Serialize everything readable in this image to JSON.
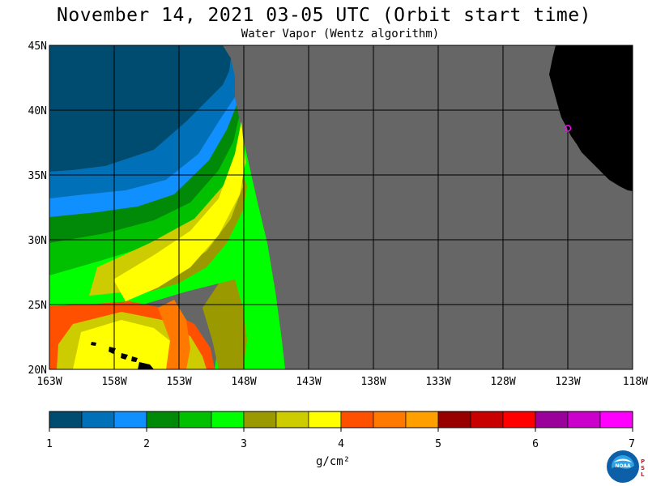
{
  "title": "November 14, 2021  03-05 UTC  (Orbit start time)",
  "subtitle": "Water Vapor (Wentz algorithm)",
  "map": {
    "lon_range": [
      -163,
      -118
    ],
    "lat_range": [
      20,
      45
    ],
    "lon_ticks": [
      "163W",
      "158W",
      "153W",
      "148W",
      "143W",
      "138W",
      "133W",
      "128W",
      "123W",
      "118W"
    ],
    "lat_ticks": [
      "45N",
      "40N",
      "35N",
      "30N",
      "25N",
      "20N"
    ],
    "land_color": "#000000",
    "no_data_color": "#666666",
    "station": {
      "label": "CZD",
      "lon": -123.0,
      "lat": 38.6,
      "color": "#ff00ff"
    }
  },
  "colorbar": {
    "colors": [
      "#004c70",
      "#0070b8",
      "#1090ff",
      "#008a08",
      "#00c000",
      "#00ff00",
      "#9a9a00",
      "#cccc00",
      "#ffff00",
      "#ff5000",
      "#ff7800",
      "#ffa000",
      "#980000",
      "#c80000",
      "#ff0000",
      "#9a009a",
      "#cc00cc",
      "#ff00ff"
    ],
    "tick_labels": [
      "1",
      "2",
      "3",
      "4",
      "5",
      "6",
      "7"
    ],
    "unit": "g/cm²"
  },
  "logo": {
    "text": "NOAA",
    "psl": "PSL"
  }
}
